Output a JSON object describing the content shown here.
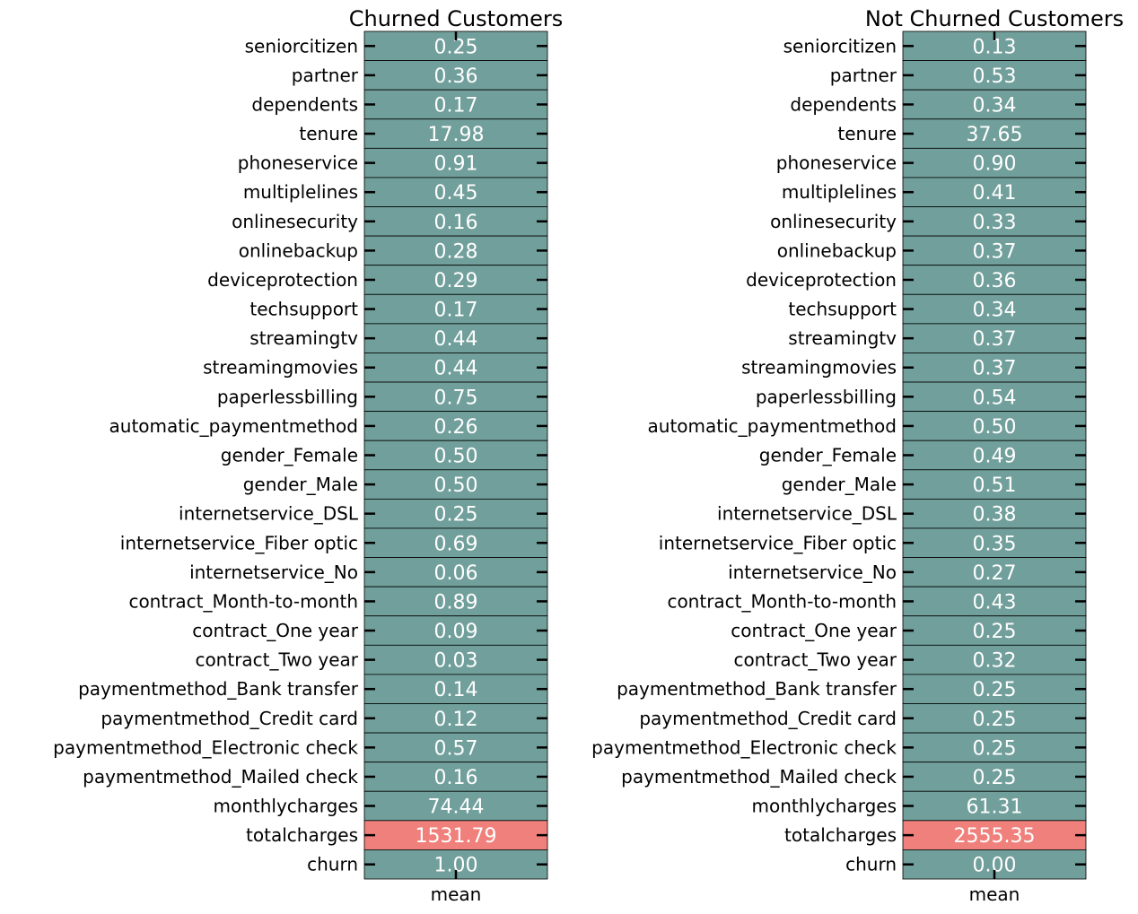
{
  "chart_data": [
    {
      "type": "heatmap",
      "title": "Churned Customers",
      "xlabel": "",
      "ylabel": "",
      "columns": [
        "mean"
      ],
      "rows": [
        "seniorcitizen",
        "partner",
        "dependents",
        "tenure",
        "phoneservice",
        "multiplelines",
        "onlinesecurity",
        "onlinebackup",
        "deviceprotection",
        "techsupport",
        "streamingtv",
        "streamingmovies",
        "paperlessbilling",
        "automatic_paymentmethod",
        "gender_Female",
        "gender_Male",
        "internetservice_DSL",
        "internetservice_Fiber optic",
        "internetservice_No",
        "contract_Month-to-month",
        "contract_One year",
        "contract_Two year",
        "paymentmethod_Bank transfer",
        "paymentmethod_Credit card",
        "paymentmethod_Electronic check",
        "paymentmethod_Mailed check",
        "monthlycharges",
        "totalcharges",
        "churn"
      ],
      "values": [
        0.25,
        0.36,
        0.17,
        17.98,
        0.91,
        0.45,
        0.16,
        0.28,
        0.29,
        0.17,
        0.44,
        0.44,
        0.75,
        0.26,
        0.5,
        0.5,
        0.25,
        0.69,
        0.06,
        0.89,
        0.09,
        0.03,
        0.14,
        0.12,
        0.57,
        0.16,
        74.44,
        1531.79,
        1.0
      ],
      "labels": [
        "0.25",
        "0.36",
        "0.17",
        "17.98",
        "0.91",
        "0.45",
        "0.16",
        "0.28",
        "0.29",
        "0.17",
        "0.44",
        "0.44",
        "0.75",
        "0.26",
        "0.50",
        "0.50",
        "0.25",
        "0.69",
        "0.06",
        "0.89",
        "0.09",
        "0.03",
        "0.14",
        "0.12",
        "0.57",
        "0.16",
        "74.44",
        "1531.79",
        "1.00"
      ],
      "colors": {
        "low": "#719f9b",
        "high": "#f0807c",
        "grid": "#000000",
        "annot": "#ffffff"
      }
    },
    {
      "type": "heatmap",
      "title": "Not Churned Customers",
      "xlabel": "",
      "ylabel": "",
      "columns": [
        "mean"
      ],
      "rows": [
        "seniorcitizen",
        "partner",
        "dependents",
        "tenure",
        "phoneservice",
        "multiplelines",
        "onlinesecurity",
        "onlinebackup",
        "deviceprotection",
        "techsupport",
        "streamingtv",
        "streamingmovies",
        "paperlessbilling",
        "automatic_paymentmethod",
        "gender_Female",
        "gender_Male",
        "internetservice_DSL",
        "internetservice_Fiber optic",
        "internetservice_No",
        "contract_Month-to-month",
        "contract_One year",
        "contract_Two year",
        "paymentmethod_Bank transfer",
        "paymentmethod_Credit card",
        "paymentmethod_Electronic check",
        "paymentmethod_Mailed check",
        "monthlycharges",
        "totalcharges",
        "churn"
      ],
      "values": [
        0.13,
        0.53,
        0.34,
        37.65,
        0.9,
        0.41,
        0.33,
        0.37,
        0.36,
        0.34,
        0.37,
        0.37,
        0.54,
        0.5,
        0.49,
        0.51,
        0.38,
        0.35,
        0.27,
        0.43,
        0.25,
        0.32,
        0.25,
        0.25,
        0.25,
        0.25,
        61.31,
        2555.35,
        0.0
      ],
      "labels": [
        "0.13",
        "0.53",
        "0.34",
        "37.65",
        "0.90",
        "0.41",
        "0.33",
        "0.37",
        "0.36",
        "0.34",
        "0.37",
        "0.37",
        "0.54",
        "0.50",
        "0.49",
        "0.51",
        "0.38",
        "0.35",
        "0.27",
        "0.43",
        "0.25",
        "0.32",
        "0.25",
        "0.25",
        "0.25",
        "0.25",
        "61.31",
        "2555.35",
        "0.00"
      ],
      "colors": {
        "low": "#719f9b",
        "high": "#f0807c",
        "grid": "#000000",
        "annot": "#ffffff"
      }
    }
  ]
}
